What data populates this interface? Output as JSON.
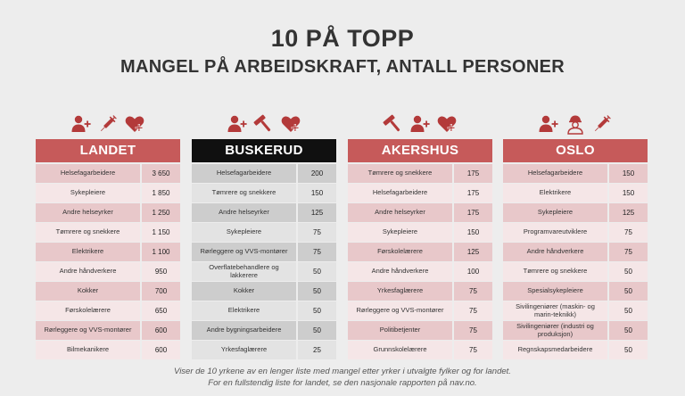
{
  "title": "10 PÅ TOPP",
  "subtitle": "MANGEL PÅ ARBEIDSKRAFT, ANTALL PERSONER",
  "colors": {
    "accent": "#c65a5a",
    "dark": "#101010"
  },
  "regions": [
    {
      "name": "LANDET",
      "icons": [
        "person-plus-icon",
        "syringe-icon",
        "heart-plus-icon"
      ],
      "rows": [
        {
          "job": "Helsefagarbeidere",
          "count": "3 650"
        },
        {
          "job": "Sykepleiere",
          "count": "1 850"
        },
        {
          "job": "Andre helseyrker",
          "count": "1 250"
        },
        {
          "job": "Tømrere og snekkere",
          "count": "1 150"
        },
        {
          "job": "Elektrikere",
          "count": "1 100"
        },
        {
          "job": "Andre håndverkere",
          "count": "950"
        },
        {
          "job": "Kokker",
          "count": "700"
        },
        {
          "job": "Førskolelærere",
          "count": "650"
        },
        {
          "job": "Rørleggere og VVS-montører",
          "count": "600"
        },
        {
          "job": "Bilmekanikere",
          "count": "600"
        }
      ]
    },
    {
      "name": "BUSKERUD",
      "icons": [
        "person-plus-icon",
        "hammer-icon",
        "heart-plus-icon"
      ],
      "rows": [
        {
          "job": "Helsefagarbeidere",
          "count": "200"
        },
        {
          "job": "Tømrere og snekkere",
          "count": "150"
        },
        {
          "job": "Andre helseyrker",
          "count": "125"
        },
        {
          "job": "Sykepleiere",
          "count": "75"
        },
        {
          "job": "Rørleggere og VVS-montører",
          "count": "75"
        },
        {
          "job": "Overflatebehandlere og lakkerere",
          "count": "50"
        },
        {
          "job": "Kokker",
          "count": "50"
        },
        {
          "job": "Elektrikere",
          "count": "50"
        },
        {
          "job": "Andre bygningsarbeidere",
          "count": "50"
        },
        {
          "job": "Yrkesfaglærere",
          "count": "25"
        }
      ]
    },
    {
      "name": "AKERSHUS",
      "icons": [
        "hammer-icon",
        "person-plus-icon",
        "heart-plus-icon"
      ],
      "rows": [
        {
          "job": "Tømrere og snekkere",
          "count": "175"
        },
        {
          "job": "Helsefagarbeidere",
          "count": "175"
        },
        {
          "job": "Andre helseyrker",
          "count": "175"
        },
        {
          "job": "Sykepleiere",
          "count": "150"
        },
        {
          "job": "Førskolelærere",
          "count": "125"
        },
        {
          "job": "Andre håndverkere",
          "count": "100"
        },
        {
          "job": "Yrkesfaglærere",
          "count": "75"
        },
        {
          "job": "Rørleggere og VVS-montører",
          "count": "75"
        },
        {
          "job": "Politibetjenter",
          "count": "75"
        },
        {
          "job": "Grunnskolelærere",
          "count": "75"
        }
      ]
    },
    {
      "name": "OSLO",
      "icons": [
        "person-plus-icon",
        "engineer-icon",
        "syringe-icon"
      ],
      "rows": [
        {
          "job": "Helsefagarbeidere",
          "count": "150"
        },
        {
          "job": "Elektrikere",
          "count": "150"
        },
        {
          "job": "Sykepleiere",
          "count": "125"
        },
        {
          "job": "Programvareutviklere",
          "count": "75"
        },
        {
          "job": "Andre håndverkere",
          "count": "75"
        },
        {
          "job": "Tømrere og snekkere",
          "count": "50"
        },
        {
          "job": "Spesialsykepleiere",
          "count": "50"
        },
        {
          "job": "Sivilingeniører (maskin- og marin-teknikk)",
          "count": "50"
        },
        {
          "job": "Sivilingeniører (industri og produksjon)",
          "count": "50"
        },
        {
          "job": "Regnskapsmedarbeidere",
          "count": "50"
        }
      ]
    }
  ],
  "footer": {
    "line1": "Viser de 10 yrkene av en lenger liste med mangel etter yrker i utvalgte fylker og for landet.",
    "line2": "For en fullstendig liste for landet, se den nasjonale rapporten på nav.no."
  }
}
